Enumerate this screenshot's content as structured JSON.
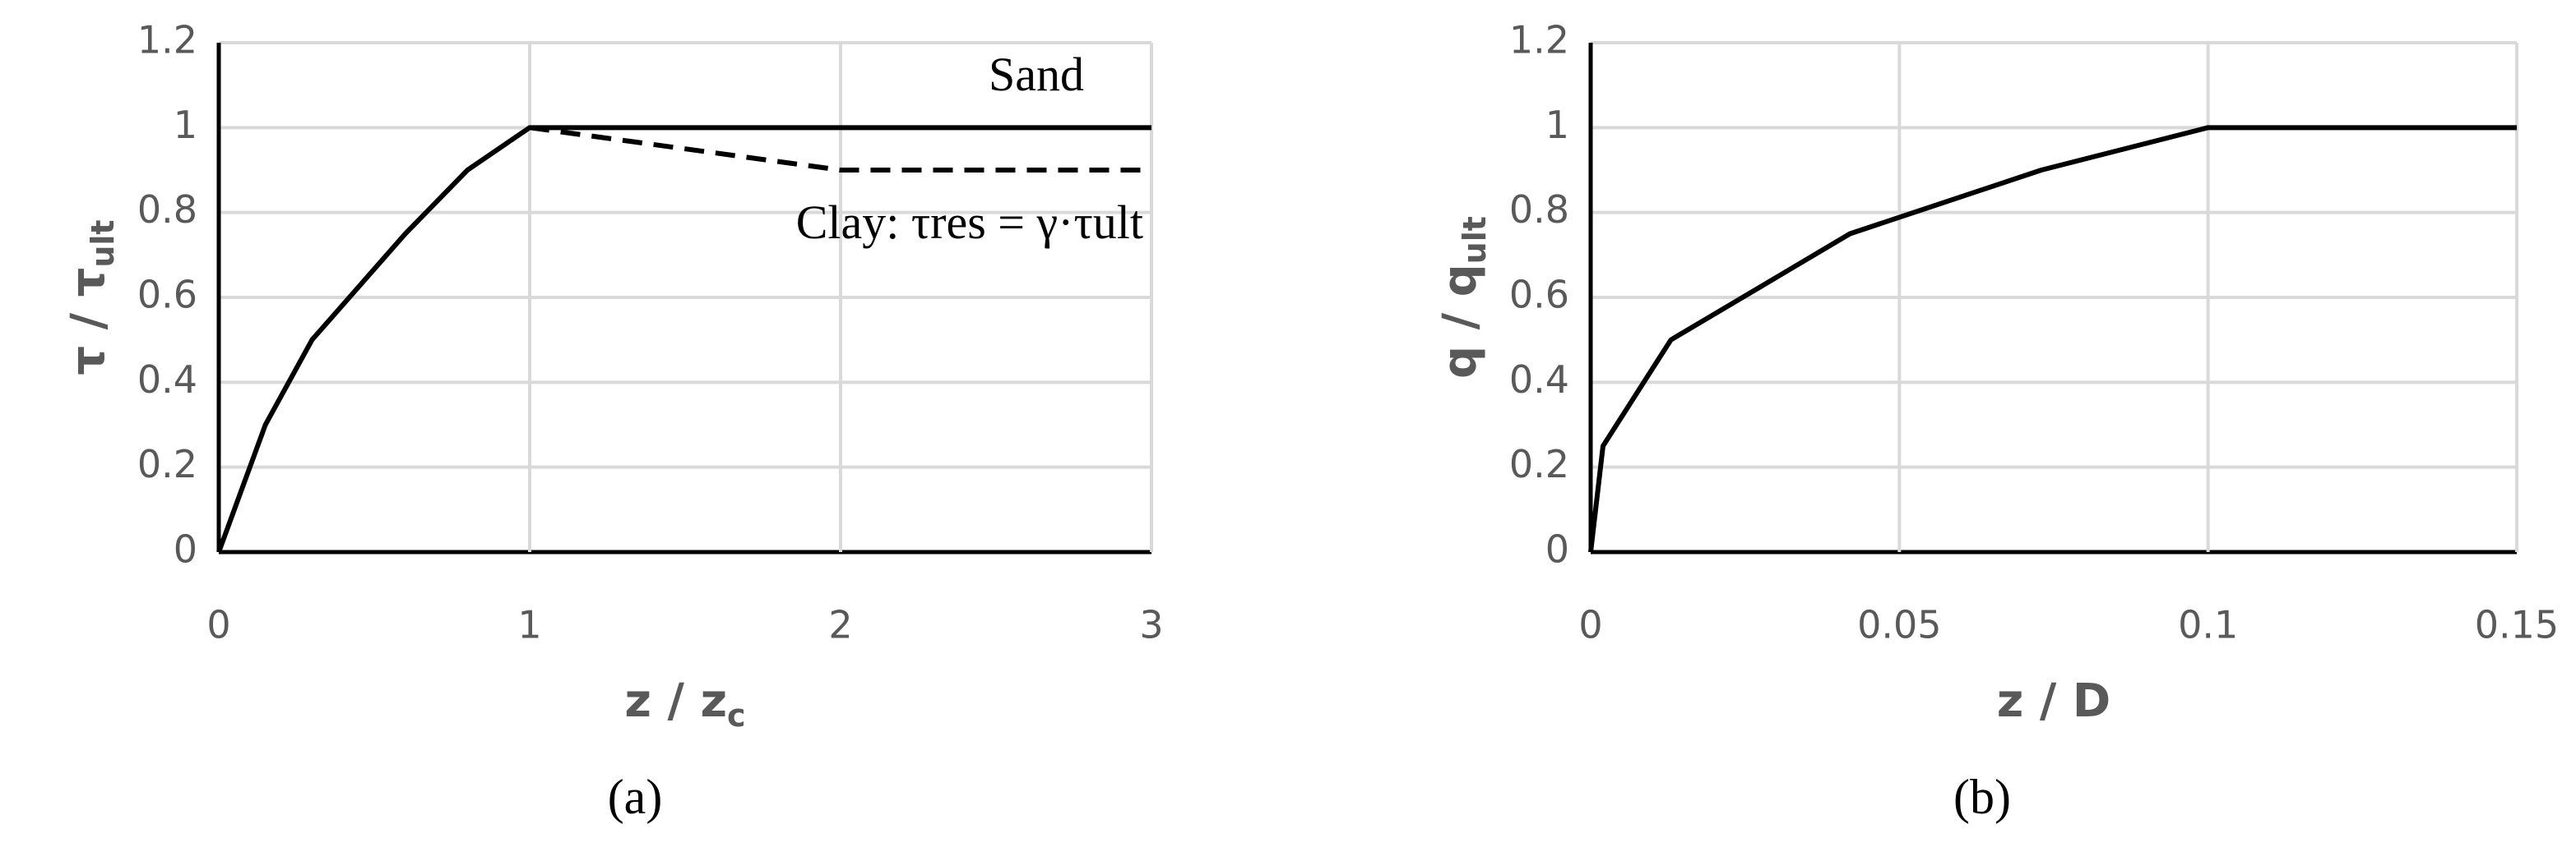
{
  "chart_data": [
    {
      "type": "line",
      "panel_label": "(a)",
      "x_label": {
        "text": "z / z",
        "sub": "c"
      },
      "y_label": {
        "text": "τ / τ",
        "sub": "ult"
      },
      "xlim": [
        0,
        3
      ],
      "xticks": [
        0,
        1,
        2,
        3
      ],
      "ylim": [
        0,
        1.2
      ],
      "yticks": [
        0,
        0.2,
        0.4,
        0.6,
        0.8,
        1,
        1.2
      ],
      "grid": true,
      "series": [
        {
          "name": "Sand",
          "color": "#000000",
          "dash": false,
          "x": [
            0,
            0.15,
            0.3,
            0.6,
            0.8,
            1,
            3
          ],
          "values": [
            0,
            0.3,
            0.5,
            0.75,
            0.9,
            1,
            1
          ]
        },
        {
          "name": "Clay: τres = γ·τult",
          "color": "#000000",
          "dash": true,
          "x": [
            1,
            2,
            3
          ],
          "values": [
            1,
            0.9,
            0.9
          ]
        }
      ]
    },
    {
      "type": "line",
      "panel_label": "(b)",
      "x_label": {
        "text": "z / D"
      },
      "y_label": {
        "text": "q / q",
        "sub": "ult"
      },
      "xlim": [
        0,
        0.15
      ],
      "xticks": [
        0,
        0.05,
        0.1,
        0.15
      ],
      "ylim": [
        0,
        1.2
      ],
      "yticks": [
        0,
        0.2,
        0.4,
        0.6,
        0.8,
        1,
        1.2
      ],
      "grid": true,
      "series": [
        {
          "color": "#000000",
          "dash": false,
          "x": [
            0,
            0.002,
            0.013,
            0.042,
            0.073,
            0.1,
            0.15
          ],
          "values": [
            0,
            0.25,
            0.5,
            0.75,
            0.9,
            1,
            1
          ]
        }
      ]
    }
  ]
}
